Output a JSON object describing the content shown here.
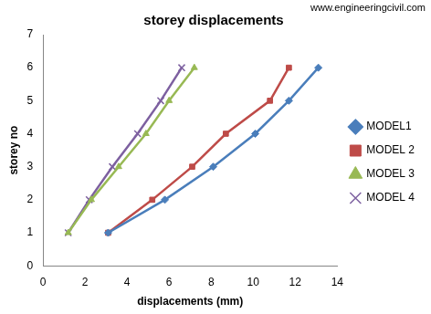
{
  "chart_data": {
    "type": "line",
    "title": "storey displacements",
    "annotations": [
      "www.engineeringcivil.com"
    ],
    "x_label": "displacements (mm)",
    "y_label": "storey no",
    "xlim": [
      0,
      14
    ],
    "xticks": [
      0,
      2,
      4,
      6,
      8,
      10,
      12,
      14
    ],
    "ylim": [
      0,
      7
    ],
    "yticks": [
      0,
      1,
      2,
      3,
      4,
      5,
      6,
      7
    ],
    "grid": false,
    "legend": "right",
    "series": [
      {
        "name": "MODEL1",
        "color": "#4a7ebb",
        "marker": "diamond",
        "x": [
          3.1,
          5.8,
          8.1,
          10.1,
          11.7,
          13.1
        ],
        "values": [
          1,
          2,
          3,
          4,
          5,
          6
        ]
      },
      {
        "name": "MODEL 2",
        "color": "#be4b48",
        "marker": "square",
        "x": [
          3.1,
          5.2,
          7.1,
          8.7,
          10.8,
          11.7
        ],
        "values": [
          1,
          2,
          3,
          4,
          5,
          6
        ]
      },
      {
        "name": "MODEL 3",
        "color": "#98b954",
        "marker": "triangle",
        "x": [
          1.2,
          2.3,
          3.6,
          4.9,
          6.0,
          7.2
        ],
        "values": [
          1,
          2,
          3,
          4,
          5,
          6
        ]
      },
      {
        "name": "MODEL 4",
        "color": "#7d60a0",
        "marker": "cross",
        "x": [
          1.2,
          2.2,
          3.3,
          4.5,
          5.6,
          6.6
        ],
        "values": [
          1,
          2,
          3,
          4,
          5,
          6
        ]
      }
    ]
  }
}
